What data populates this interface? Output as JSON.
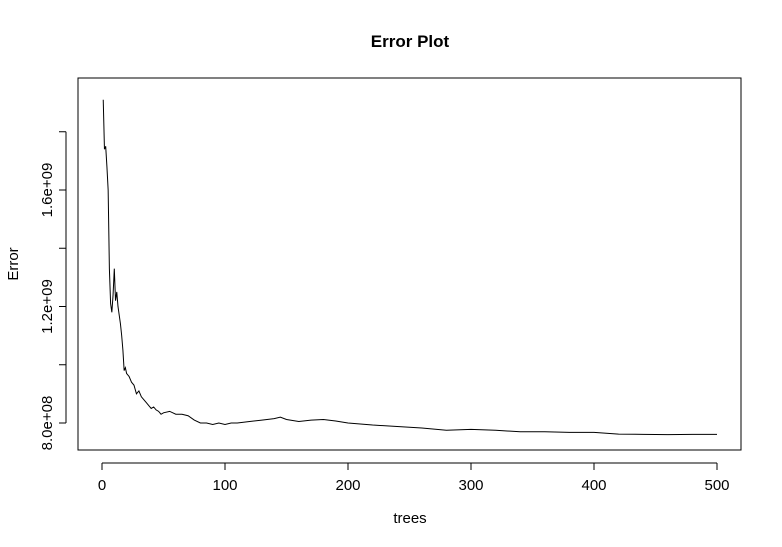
{
  "chart_data": {
    "type": "line",
    "title": "Error Plot",
    "xlabel": "trees",
    "ylabel": "Error",
    "xlim": [
      0,
      500
    ],
    "ylim": [
      700000000,
      1950000000
    ],
    "grid": false,
    "x_ticks": [
      {
        "value": 0,
        "label": "0"
      },
      {
        "value": 100,
        "label": "100"
      },
      {
        "value": 200,
        "label": "200"
      },
      {
        "value": 300,
        "label": "300"
      },
      {
        "value": 400,
        "label": "400"
      },
      {
        "value": 500,
        "label": "500"
      }
    ],
    "y_ticks": [
      {
        "value": 800000000,
        "label": "8.0e+08"
      },
      {
        "value": 1000000000,
        "label": ""
      },
      {
        "value": 1200000000,
        "label": "1.2e+09"
      },
      {
        "value": 1400000000,
        "label": ""
      },
      {
        "value": 1600000000,
        "label": "1.6e+09"
      },
      {
        "value": 1800000000,
        "label": ""
      }
    ],
    "color": "#000000",
    "series": [
      {
        "x": [
          1,
          2,
          3,
          4,
          5,
          6,
          7,
          8,
          9,
          10,
          11,
          12,
          13,
          14,
          15,
          16,
          17,
          18,
          19,
          20,
          22,
          24,
          26,
          28,
          30,
          32,
          34,
          36,
          38,
          40,
          42,
          44,
          46,
          48,
          50,
          55,
          60,
          65,
          70,
          75,
          80,
          85,
          90,
          95,
          100,
          105,
          110,
          120,
          130,
          140,
          145,
          150,
          160,
          170,
          180,
          190,
          200,
          220,
          240,
          260,
          280,
          300,
          320,
          340,
          360,
          380,
          400,
          420,
          440,
          460,
          480,
          500
        ],
        "values": [
          1910000000,
          1740000000,
          1750000000,
          1680000000,
          1600000000,
          1330000000,
          1210000000,
          1180000000,
          1240000000,
          1330000000,
          1220000000,
          1250000000,
          1200000000,
          1170000000,
          1140000000,
          1100000000,
          1050000000,
          980000000,
          990000000,
          970000000,
          960000000,
          940000000,
          930000000,
          900000000,
          910000000,
          890000000,
          880000000,
          870000000,
          860000000,
          850000000,
          855000000,
          845000000,
          840000000,
          830000000,
          835000000,
          840000000,
          830000000,
          830000000,
          825000000,
          810000000,
          800000000,
          800000000,
          795000000,
          800000000,
          795000000,
          800000000,
          800000000,
          805000000,
          810000000,
          815000000,
          820000000,
          812000000,
          805000000,
          810000000,
          812000000,
          807000000,
          800000000,
          793000000,
          788000000,
          783000000,
          775000000,
          778000000,
          775000000,
          770000000,
          770000000,
          768000000,
          768000000,
          762000000,
          761000000,
          760000000,
          761000000,
          761000000
        ]
      }
    ]
  }
}
